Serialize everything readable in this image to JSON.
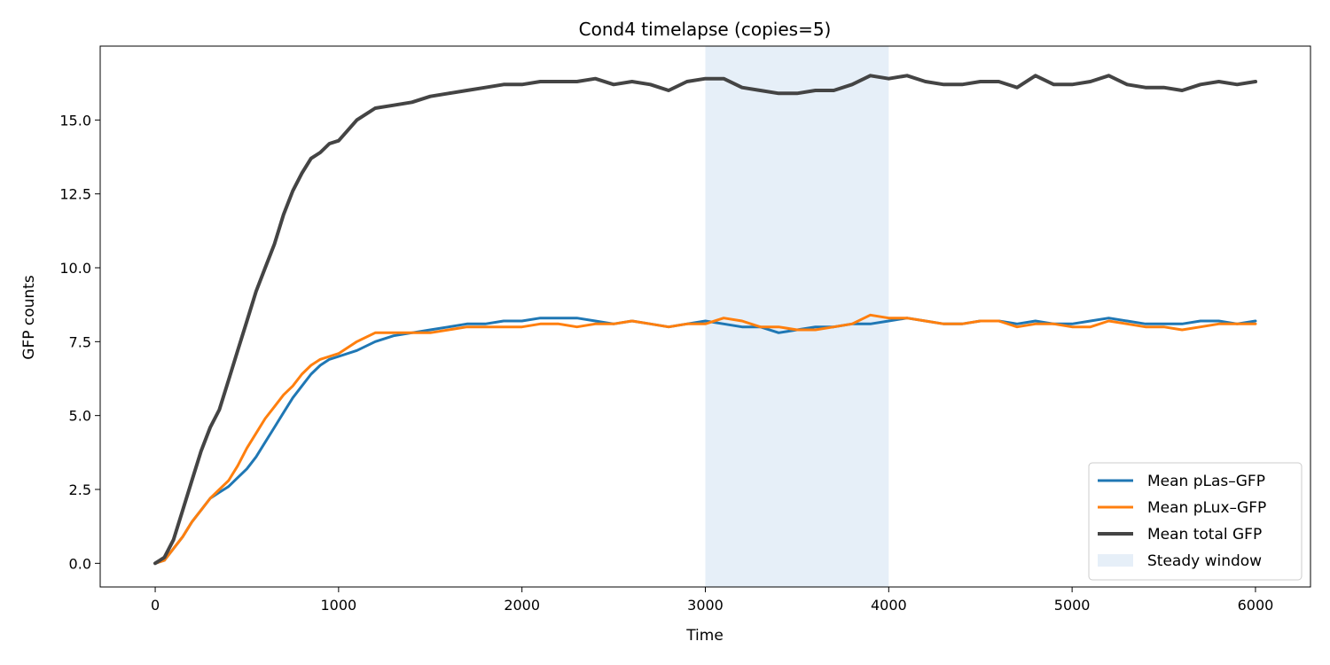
{
  "chart_data": {
    "type": "line",
    "title": "Cond4 timelapse (copies=5)",
    "xlabel": "Time",
    "ylabel": "GFP counts",
    "xlim": [
      -300,
      6300
    ],
    "ylim": [
      -0.8,
      17.5
    ],
    "xticks": [
      0,
      1000,
      2000,
      3000,
      4000,
      5000,
      6000
    ],
    "yticks": [
      0.0,
      2.5,
      5.0,
      7.5,
      10.0,
      12.5,
      15.0
    ],
    "ytick_labels": [
      "0.0",
      "2.5",
      "5.0",
      "7.5",
      "10.0",
      "12.5",
      "15.0"
    ],
    "grid": false,
    "legend_position": "bottom-right",
    "shaded_region": {
      "name": "Steady window",
      "x": [
        3000,
        4000
      ],
      "color": "#e6eff8"
    },
    "series": [
      {
        "name": "Mean pLas–GFP",
        "color": "#1f77b4",
        "x": [
          0,
          50,
          100,
          150,
          200,
          250,
          300,
          350,
          400,
          450,
          500,
          550,
          600,
          650,
          700,
          750,
          800,
          850,
          900,
          950,
          1000,
          1100,
          1200,
          1300,
          1400,
          1500,
          1600,
          1700,
          1800,
          1900,
          2000,
          2100,
          2200,
          2300,
          2400,
          2500,
          2600,
          2700,
          2800,
          2900,
          3000,
          3100,
          3200,
          3300,
          3400,
          3500,
          3600,
          3700,
          3800,
          3900,
          4000,
          4100,
          4200,
          4300,
          4400,
          4500,
          4600,
          4700,
          4800,
          4900,
          5000,
          5100,
          5200,
          5300,
          5400,
          5500,
          5600,
          5700,
          5800,
          5900,
          6000
        ],
        "values": [
          0.0,
          0.1,
          0.5,
          0.9,
          1.4,
          1.8,
          2.2,
          2.4,
          2.6,
          2.9,
          3.2,
          3.6,
          4.1,
          4.6,
          5.1,
          5.6,
          6.0,
          6.4,
          6.7,
          6.9,
          7.0,
          7.2,
          7.5,
          7.7,
          7.8,
          7.9,
          8.0,
          8.1,
          8.1,
          8.2,
          8.2,
          8.3,
          8.3,
          8.3,
          8.2,
          8.1,
          8.2,
          8.1,
          8.0,
          8.1,
          8.2,
          8.1,
          8.0,
          8.0,
          7.8,
          7.9,
          8.0,
          8.0,
          8.1,
          8.1,
          8.2,
          8.3,
          8.2,
          8.1,
          8.1,
          8.2,
          8.2,
          8.1,
          8.2,
          8.1,
          8.1,
          8.2,
          8.3,
          8.2,
          8.1,
          8.1,
          8.1,
          8.2,
          8.2,
          8.1,
          8.2
        ]
      },
      {
        "name": "Mean pLux–GFP",
        "color": "#ff7f0e",
        "x": [
          0,
          50,
          100,
          150,
          200,
          250,
          300,
          350,
          400,
          450,
          500,
          550,
          600,
          650,
          700,
          750,
          800,
          850,
          900,
          950,
          1000,
          1100,
          1200,
          1300,
          1400,
          1500,
          1600,
          1700,
          1800,
          1900,
          2000,
          2100,
          2200,
          2300,
          2400,
          2500,
          2600,
          2700,
          2800,
          2900,
          3000,
          3100,
          3200,
          3300,
          3400,
          3500,
          3600,
          3700,
          3800,
          3900,
          4000,
          4100,
          4200,
          4300,
          4400,
          4500,
          4600,
          4700,
          4800,
          4900,
          5000,
          5100,
          5200,
          5300,
          5400,
          5500,
          5600,
          5700,
          5800,
          5900,
          6000
        ],
        "values": [
          0.0,
          0.1,
          0.5,
          0.9,
          1.4,
          1.8,
          2.2,
          2.5,
          2.8,
          3.3,
          3.9,
          4.4,
          4.9,
          5.3,
          5.7,
          6.0,
          6.4,
          6.7,
          6.9,
          7.0,
          7.1,
          7.5,
          7.8,
          7.8,
          7.8,
          7.8,
          7.9,
          8.0,
          8.0,
          8.0,
          8.0,
          8.1,
          8.1,
          8.0,
          8.1,
          8.1,
          8.2,
          8.1,
          8.0,
          8.1,
          8.1,
          8.3,
          8.2,
          8.0,
          8.0,
          7.9,
          7.9,
          8.0,
          8.1,
          8.4,
          8.3,
          8.3,
          8.2,
          8.1,
          8.1,
          8.2,
          8.2,
          8.0,
          8.1,
          8.1,
          8.0,
          8.0,
          8.2,
          8.1,
          8.0,
          8.0,
          7.9,
          8.0,
          8.1,
          8.1,
          8.1
        ]
      },
      {
        "name": "Mean total GFP",
        "color": "#444444",
        "x": [
          0,
          50,
          100,
          150,
          200,
          250,
          300,
          350,
          400,
          450,
          500,
          550,
          600,
          650,
          700,
          750,
          800,
          850,
          900,
          950,
          1000,
          1100,
          1200,
          1300,
          1400,
          1500,
          1600,
          1700,
          1800,
          1900,
          2000,
          2100,
          2200,
          2300,
          2400,
          2500,
          2600,
          2700,
          2800,
          2900,
          3000,
          3100,
          3200,
          3300,
          3400,
          3500,
          3600,
          3700,
          3800,
          3900,
          4000,
          4100,
          4200,
          4300,
          4400,
          4500,
          4600,
          4700,
          4800,
          4900,
          5000,
          5100,
          5200,
          5300,
          5400,
          5500,
          5600,
          5700,
          5800,
          5900,
          6000
        ],
        "values": [
          0.0,
          0.2,
          0.8,
          1.8,
          2.8,
          3.8,
          4.6,
          5.2,
          6.2,
          7.2,
          8.2,
          9.2,
          10.0,
          10.8,
          11.8,
          12.6,
          13.2,
          13.7,
          13.9,
          14.2,
          14.3,
          15.0,
          15.4,
          15.5,
          15.6,
          15.8,
          15.9,
          16.0,
          16.1,
          16.2,
          16.2,
          16.3,
          16.3,
          16.3,
          16.4,
          16.2,
          16.3,
          16.2,
          16.0,
          16.3,
          16.4,
          16.4,
          16.1,
          16.0,
          15.9,
          15.9,
          16.0,
          16.0,
          16.2,
          16.5,
          16.4,
          16.5,
          16.3,
          16.2,
          16.2,
          16.3,
          16.3,
          16.1,
          16.5,
          16.2,
          16.2,
          16.3,
          16.5,
          16.2,
          16.1,
          16.1,
          16.0,
          16.2,
          16.3,
          16.2,
          16.3
        ]
      }
    ]
  }
}
